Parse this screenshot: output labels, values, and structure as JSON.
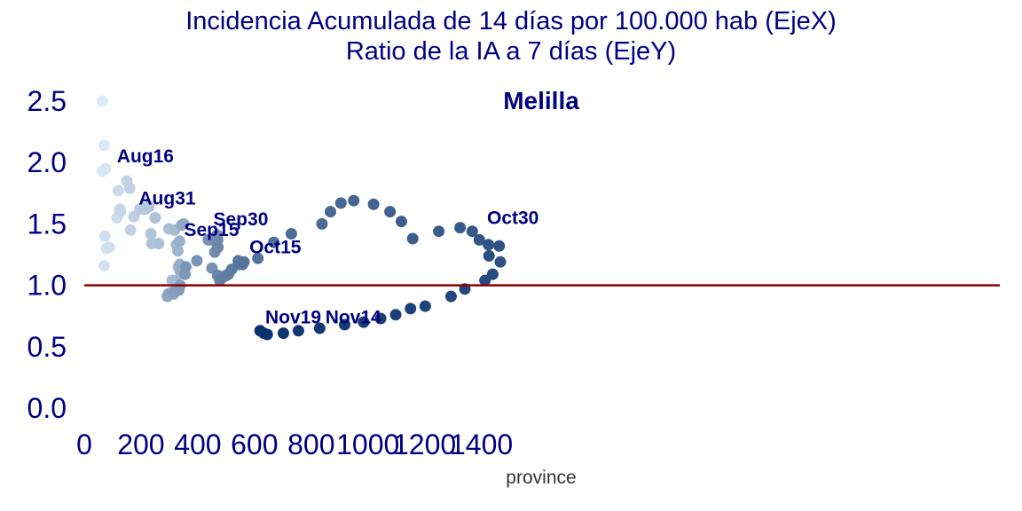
{
  "header": {
    "title_line1": "Incidencia Acumulada de 14 días por 100.000 hab (EjeX)",
    "title_line2": "Ratio de la IA a 7 días (EjeY)"
  },
  "chart_data": {
    "type": "scatter",
    "region_label": "Melilla",
    "xlabel": "province",
    "xlim": [
      0,
      1600
    ],
    "ylim": [
      0,
      2.5
    ],
    "xticks": [
      "0",
      "200",
      "400",
      "600",
      "800",
      "1000",
      "1200",
      "1400"
    ],
    "yticks": [
      "0.0",
      "0.5",
      "1.0",
      "1.5",
      "2.0",
      "2.5"
    ],
    "reference_line": {
      "y": 1.0,
      "color": "#8b0000"
    },
    "colors": {
      "start": "#deebf7",
      "end": "#08306b"
    },
    "points": [
      [
        64,
        2.5
      ],
      [
        70,
        2.14
      ],
      [
        64,
        1.93
      ],
      [
        75,
        1.95
      ],
      [
        70,
        1.16
      ],
      [
        78,
        1.3
      ],
      [
        88,
        1.31
      ],
      [
        73,
        1.4
      ],
      [
        115,
        1.55
      ],
      [
        120,
        1.77
      ],
      [
        125,
        1.62
      ],
      [
        128,
        1.6
      ],
      [
        150,
        1.85
      ],
      [
        160,
        1.79
      ],
      [
        163,
        1.45
      ],
      [
        175,
        1.56
      ],
      [
        195,
        1.62
      ],
      [
        205,
        1.63
      ],
      [
        215,
        1.62
      ],
      [
        228,
        1.64
      ],
      [
        235,
        1.42
      ],
      [
        238,
        1.34
      ],
      [
        250,
        1.55
      ],
      [
        262,
        1.34
      ],
      [
        298,
        1.46
      ],
      [
        310,
        1.04
      ],
      [
        318,
        1.45
      ],
      [
        322,
        1.04
      ],
      [
        325,
        1.33
      ],
      [
        330,
        1.28
      ],
      [
        332,
        1.15
      ],
      [
        336,
        1.36
      ],
      [
        337,
        1.17
      ],
      [
        338,
        1.12
      ],
      [
        343,
        1.49
      ],
      [
        350,
        1.5
      ],
      [
        293,
        0.91
      ],
      [
        297,
        0.93
      ],
      [
        308,
        0.94
      ],
      [
        315,
        0.93
      ],
      [
        320,
        0.95
      ],
      [
        328,
        0.97
      ],
      [
        333,
        0.96
      ],
      [
        338,
        1.0
      ],
      [
        355,
        1.09
      ],
      [
        358,
        1.15
      ],
      [
        397,
        1.2
      ],
      [
        437,
        1.37
      ],
      [
        450,
        1.14
      ],
      [
        460,
        1.27
      ],
      [
        465,
        1.35
      ],
      [
        468,
        1.41
      ],
      [
        470,
        1.37
      ],
      [
        471,
        1.31
      ],
      [
        470,
        1.08
      ],
      [
        478,
        1.04
      ],
      [
        484,
        1.06
      ],
      [
        492,
        1.07
      ],
      [
        500,
        1.08
      ],
      [
        508,
        1.09
      ],
      [
        520,
        1.13
      ],
      [
        543,
        1.2
      ],
      [
        545,
        1.17
      ],
      [
        558,
        1.17
      ],
      [
        563,
        1.19
      ],
      [
        612,
        1.22
      ],
      [
        668,
        1.35
      ],
      [
        730,
        1.42
      ],
      [
        838,
        1.5
      ],
      [
        868,
        1.6
      ],
      [
        905,
        1.67
      ],
      [
        950,
        1.69
      ],
      [
        1020,
        1.66
      ],
      [
        1078,
        1.6
      ],
      [
        1118,
        1.52
      ],
      [
        1158,
        1.38
      ],
      [
        1250,
        1.44
      ],
      [
        1325,
        1.47
      ],
      [
        1368,
        1.44
      ],
      [
        1393,
        1.37
      ],
      [
        1425,
        1.33
      ],
      [
        1463,
        1.32
      ],
      [
        1467,
        1.19
      ],
      [
        1427,
        1.24
      ],
      [
        1440,
        1.09
      ],
      [
        1413,
        1.04
      ],
      [
        1342,
        0.97
      ],
      [
        1293,
        0.91
      ],
      [
        1202,
        0.83
      ],
      [
        1150,
        0.81
      ],
      [
        1098,
        0.76
      ],
      [
        1045,
        0.73
      ],
      [
        985,
        0.7
      ],
      [
        918,
        0.68
      ],
      [
        830,
        0.65
      ],
      [
        755,
        0.63
      ],
      [
        702,
        0.61
      ],
      [
        645,
        0.6
      ],
      [
        633,
        0.61
      ],
      [
        620,
        0.63
      ]
    ],
    "annotations": [
      {
        "text": "Aug16",
        "x": 115,
        "y": 2.0
      },
      {
        "text": "Aug31",
        "x": 192,
        "y": 1.66
      },
      {
        "text": "Sep15",
        "x": 352,
        "y": 1.4
      },
      {
        "text": "Sep30",
        "x": 455,
        "y": 1.49
      },
      {
        "text": "Oct15",
        "x": 582,
        "y": 1.26
      },
      {
        "text": "Oct30",
        "x": 1420,
        "y": 1.5
      },
      {
        "text": "Nov19",
        "x": 638,
        "y": 0.69
      },
      {
        "text": "Nov14",
        "x": 850,
        "y": 0.69
      }
    ]
  }
}
